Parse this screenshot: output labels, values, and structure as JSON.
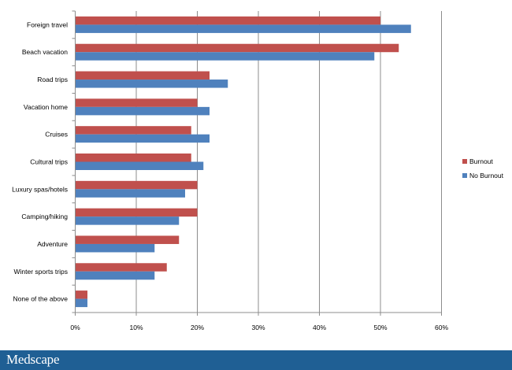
{
  "chart_data": {
    "type": "bar",
    "orientation": "horizontal",
    "categories": [
      "Foreign travel",
      "Beach vacation",
      "Road trips",
      "Vacation home",
      "Cruises",
      "Cultural trips",
      "Luxury spas/hotels",
      "Camping/hiking",
      "Adventure",
      "Winter sports trips",
      "None of the above"
    ],
    "series": [
      {
        "name": "Burnout",
        "color": "#c0504d",
        "values": [
          50,
          53,
          22,
          20,
          19,
          19,
          20,
          20,
          17,
          15,
          2
        ]
      },
      {
        "name": "No Burnout",
        "color": "#4f81bd",
        "values": [
          55,
          49,
          25,
          22,
          22,
          21,
          18,
          17,
          13,
          13,
          2
        ]
      }
    ],
    "xticks": [
      "0%",
      "10%",
      "20%",
      "30%",
      "40%",
      "50%",
      "60%"
    ],
    "xlim": [
      0,
      60
    ],
    "grid": true,
    "legend_position": "right"
  },
  "footer": {
    "logo_text": "Medscape"
  }
}
